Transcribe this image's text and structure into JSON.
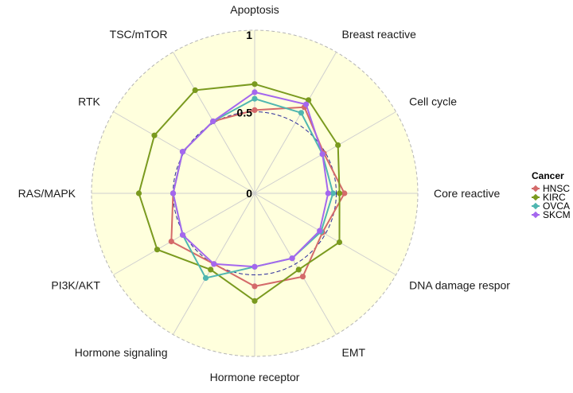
{
  "chart_data": {
    "type": "radar",
    "axes": [
      "Apoptosis",
      "Breast reactive",
      "Cell cycle",
      "Core reactive",
      "DNA damage respor",
      "EMT",
      "Hormone receptor",
      "Hormone signaling",
      "PI3K/AKT",
      "RAS/MAPK",
      "RTK",
      "TSC/mTOR"
    ],
    "ring_labels": [
      "0",
      "0.5",
      "1"
    ],
    "rlim": [
      0,
      1
    ],
    "reference_level": 0.5,
    "legend": {
      "title": "Cancer",
      "placement": "right"
    },
    "series": [
      {
        "name": "HNSC",
        "color": "#d46a6a",
        "values": [
          0.51,
          0.61,
          0.49,
          0.55,
          0.48,
          0.59,
          0.57,
          0.5,
          0.59,
          0.5,
          0.51,
          0.51
        ]
      },
      {
        "name": "KIRC",
        "color": "#7a9a1f",
        "values": [
          0.67,
          0.66,
          0.59,
          0.52,
          0.6,
          0.54,
          0.66,
          0.54,
          0.69,
          0.71,
          0.71,
          0.73
        ]
      },
      {
        "name": "OVCA",
        "color": "#4fb6b0",
        "values": [
          0.58,
          0.57,
          0.48,
          0.48,
          0.47,
          0.46,
          0.45,
          0.6,
          0.51,
          0.5,
          0.51,
          0.51
        ]
      },
      {
        "name": "SKCM",
        "color": "#a467ee",
        "values": [
          0.62,
          0.63,
          0.48,
          0.45,
          0.46,
          0.46,
          0.45,
          0.5,
          0.51,
          0.5,
          0.51,
          0.51
        ]
      }
    ]
  }
}
